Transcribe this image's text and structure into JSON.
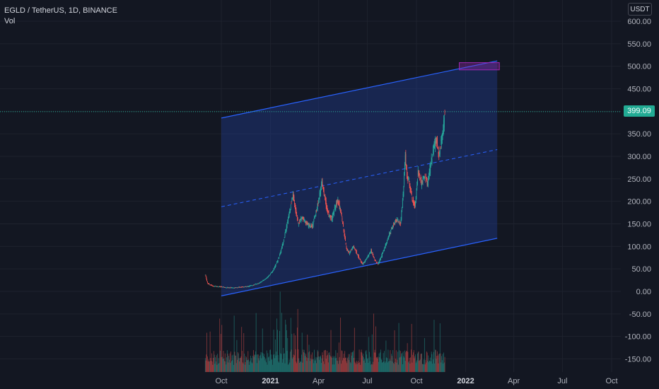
{
  "header": {
    "symbol": "EGLD / TetherUS, 1D, BINANCE",
    "volume_label": "Vol"
  },
  "currency": "USDT",
  "last_price": "399.09",
  "colors": {
    "background": "#131722",
    "up": "#26a69a",
    "down": "#ef5350",
    "channel_line": "#2962ff",
    "channel_fill": "#1e3a8a",
    "target_box": "#9c27b0",
    "price_tag": "#22ab94"
  },
  "chart_data": {
    "type": "candlestick",
    "title": "EGLD / TetherUS, 1D, BINANCE",
    "y_ticks": [
      "600.00",
      "550.00",
      "500.00",
      "450.00",
      "400.00",
      "350.00",
      "300.00",
      "250.00",
      "200.00",
      "150.00",
      "100.00",
      "50.00",
      "0.00",
      "-50.00",
      "-100.00",
      "-150.00"
    ],
    "x_ticks": [
      {
        "label": "Oct",
        "bold": false
      },
      {
        "label": "2021",
        "bold": true
      },
      {
        "label": "Apr",
        "bold": false
      },
      {
        "label": "Jul",
        "bold": false
      },
      {
        "label": "Oct",
        "bold": false
      },
      {
        "label": "2022",
        "bold": true
      },
      {
        "label": "Apr",
        "bold": false
      },
      {
        "label": "Jul",
        "bold": false
      },
      {
        "label": "Oct",
        "bold": false
      }
    ],
    "ylim": [
      -175,
      620
    ],
    "grid": true,
    "price_path": [
      [
        "2020-09-01",
        37
      ],
      [
        "2020-09-05",
        18
      ],
      [
        "2020-09-15",
        12
      ],
      [
        "2020-10-01",
        10
      ],
      [
        "2020-10-15",
        8
      ],
      [
        "2020-11-01",
        9
      ],
      [
        "2020-11-20",
        11
      ],
      [
        "2020-12-10",
        18
      ],
      [
        "2020-12-25",
        30
      ],
      [
        "2021-01-05",
        45
      ],
      [
        "2021-01-15",
        70
      ],
      [
        "2021-01-25",
        110
      ],
      [
        "2021-02-01",
        150
      ],
      [
        "2021-02-08",
        190
      ],
      [
        "2021-02-12",
        220
      ],
      [
        "2021-02-16",
        185
      ],
      [
        "2021-02-22",
        150
      ],
      [
        "2021-03-01",
        165
      ],
      [
        "2021-03-10",
        150
      ],
      [
        "2021-03-20",
        145
      ],
      [
        "2021-03-28",
        180
      ],
      [
        "2021-04-03",
        215
      ],
      [
        "2021-04-07",
        245
      ],
      [
        "2021-04-12",
        210
      ],
      [
        "2021-04-18",
        175
      ],
      [
        "2021-04-25",
        160
      ],
      [
        "2021-05-01",
        185
      ],
      [
        "2021-05-07",
        200
      ],
      [
        "2021-05-13",
        175
      ],
      [
        "2021-05-19",
        125
      ],
      [
        "2021-05-23",
        95
      ],
      [
        "2021-05-28",
        85
      ],
      [
        "2021-06-05",
        100
      ],
      [
        "2021-06-15",
        75
      ],
      [
        "2021-06-22",
        60
      ],
      [
        "2021-07-01",
        75
      ],
      [
        "2021-07-08",
        90
      ],
      [
        "2021-07-15",
        70
      ],
      [
        "2021-07-21",
        60
      ],
      [
        "2021-07-28",
        80
      ],
      [
        "2021-08-05",
        105
      ],
      [
        "2021-08-15",
        140
      ],
      [
        "2021-08-25",
        160
      ],
      [
        "2021-09-01",
        150
      ],
      [
        "2021-09-06",
        215
      ],
      [
        "2021-09-10",
        300
      ],
      [
        "2021-09-13",
        255
      ],
      [
        "2021-09-18",
        240
      ],
      [
        "2021-09-22",
        210
      ],
      [
        "2021-09-28",
        190
      ],
      [
        "2021-10-04",
        265
      ],
      [
        "2021-10-10",
        240
      ],
      [
        "2021-10-16",
        255
      ],
      [
        "2021-10-22",
        240
      ],
      [
        "2021-10-28",
        285
      ],
      [
        "2021-11-03",
        320
      ],
      [
        "2021-11-08",
        335
      ],
      [
        "2021-11-12",
        300
      ],
      [
        "2021-11-15",
        325
      ],
      [
        "2021-11-18",
        345
      ],
      [
        "2021-11-21",
        375
      ],
      [
        "2021-11-23",
        399
      ]
    ],
    "channel": {
      "upper": [
        [
          "2020-10-01",
          385
        ],
        [
          "2022-03-01",
          512
        ]
      ],
      "lower": [
        [
          "2020-10-01",
          -10
        ],
        [
          "2022-03-01",
          118
        ]
      ],
      "mid": [
        [
          "2020-10-01",
          188
        ],
        [
          "2022-03-01",
          315
        ]
      ]
    },
    "target_zone": {
      "date_start": "2021-12-20",
      "date_end": "2022-03-05",
      "price_low": 492,
      "price_high": 508
    },
    "volume": {
      "visible": true
    }
  }
}
